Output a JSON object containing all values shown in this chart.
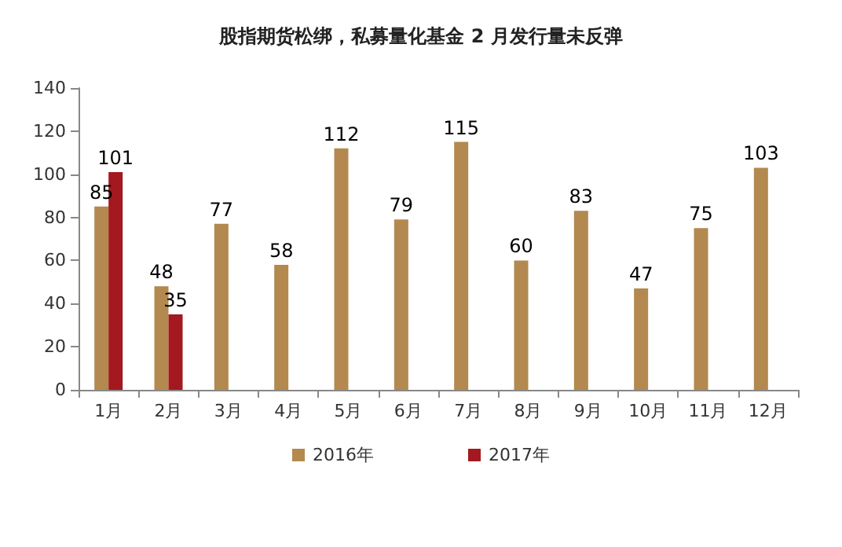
{
  "chart_data": {
    "type": "bar",
    "title": "股指期货松绑，私募量化基金 2 月发行量未反弹",
    "categories": [
      "1月",
      "2月",
      "3月",
      "4月",
      "5月",
      "6月",
      "7月",
      "8月",
      "9月",
      "10月",
      "11月",
      "12月"
    ],
    "series": [
      {
        "name": "2016年",
        "color": "#b3894f",
        "values": [
          85,
          48,
          77,
          58,
          112,
          79,
          115,
          60,
          83,
          47,
          75,
          103
        ]
      },
      {
        "name": "2017年",
        "color": "#a3191f",
        "values": [
          101,
          35,
          null,
          null,
          null,
          null,
          null,
          null,
          null,
          null,
          null,
          null
        ]
      }
    ],
    "ylim": [
      0,
      140
    ],
    "yticks": [
      0,
      20,
      40,
      60,
      80,
      100,
      120,
      140
    ],
    "grid": false,
    "legend": "bottom",
    "data_labels": true
  }
}
